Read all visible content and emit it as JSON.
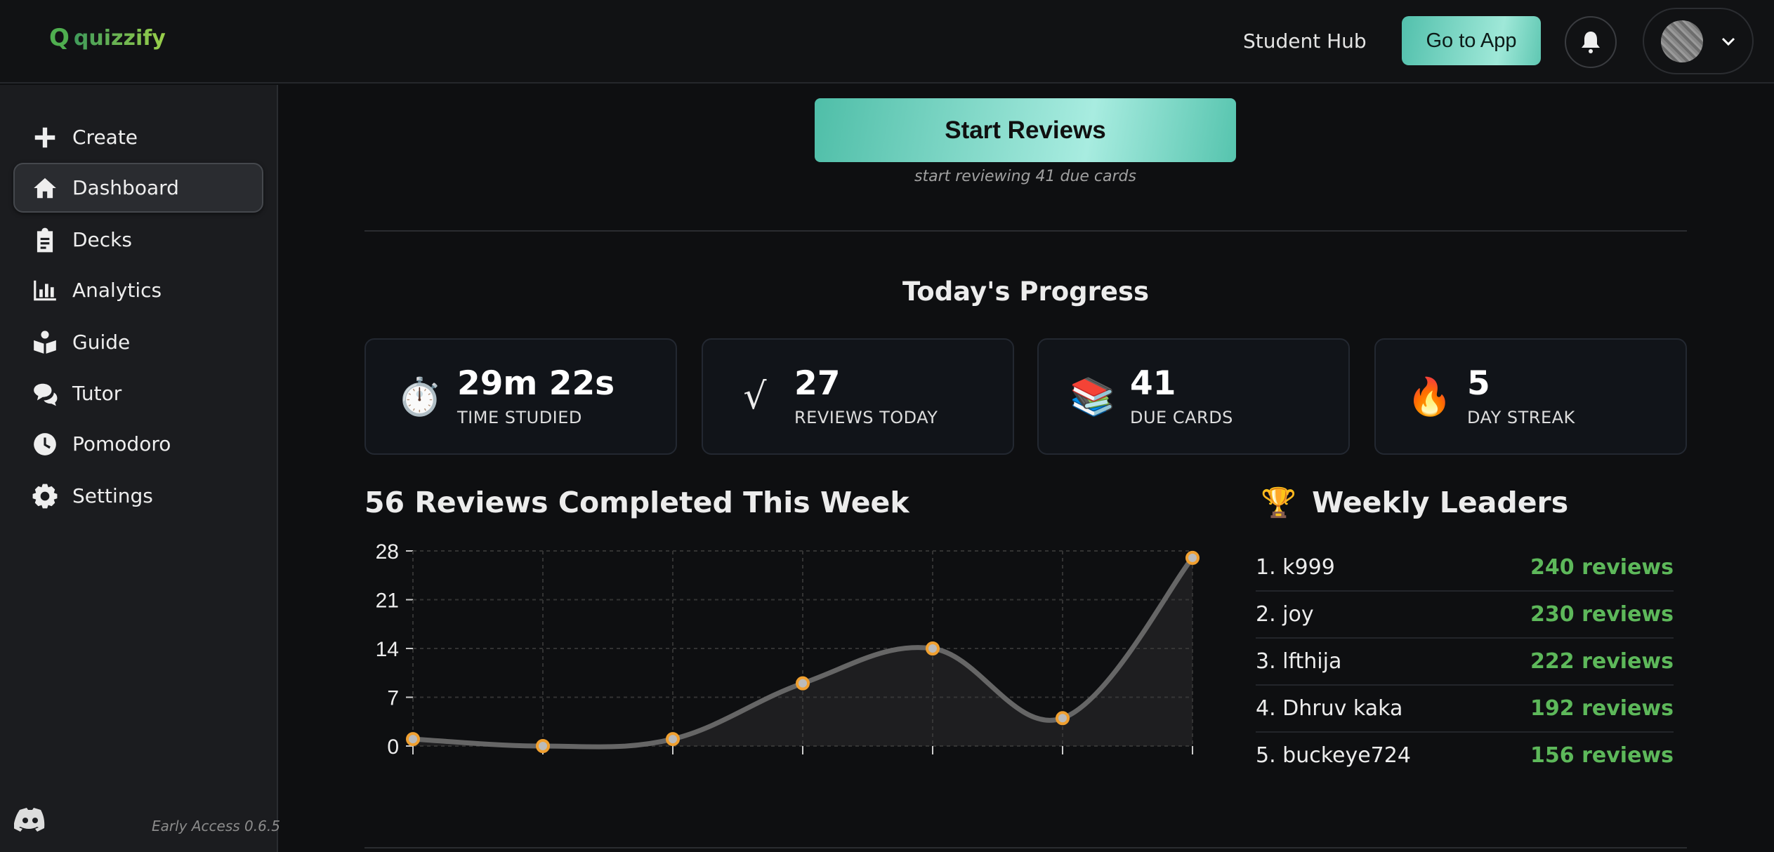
{
  "header": {
    "logo_mark": "Q",
    "logo_text": "quizzify",
    "student_hub": "Student Hub",
    "go_to_app": "Go to App"
  },
  "sidebar": {
    "items": [
      {
        "label": "Create",
        "icon": "plus-icon"
      },
      {
        "label": "Dashboard",
        "icon": "home-icon",
        "active": true
      },
      {
        "label": "Decks",
        "icon": "clipboard-icon"
      },
      {
        "label": "Analytics",
        "icon": "bar-chart-icon"
      },
      {
        "label": "Guide",
        "icon": "book-reader-icon"
      },
      {
        "label": "Tutor",
        "icon": "chat-bubbles-icon"
      },
      {
        "label": "Pomodoro",
        "icon": "clock-icon"
      },
      {
        "label": "Settings",
        "icon": "gear-icon"
      }
    ],
    "version": "Early Access 0.6.5"
  },
  "main": {
    "start_button": "Start Reviews",
    "start_sub": "start reviewing 41 due cards",
    "progress_title": "Today's Progress",
    "stats": [
      {
        "icon": "⏱️",
        "value": "29m 22s",
        "label": "TIME STUDIED"
      },
      {
        "icon": "√",
        "value": "27",
        "label": "REVIEWS TODAY"
      },
      {
        "icon": "📚",
        "value": "41",
        "label": "DUE CARDS"
      },
      {
        "icon": "🔥",
        "value": "5",
        "label": "DAY STREAK"
      }
    ],
    "chart_title": "56 Reviews Completed This Week",
    "leaders_icon": "🏆",
    "leaders_title": "Weekly Leaders",
    "leaders": [
      {
        "name": "1. k999",
        "reviews": "240 reviews"
      },
      {
        "name": "2. joy",
        "reviews": "230 reviews"
      },
      {
        "name": "3. lfthija",
        "reviews": "222 reviews"
      },
      {
        "name": "4. Dhruv kaka",
        "reviews": "192 reviews"
      },
      {
        "name": "5. buckeye724",
        "reviews": "156 reviews"
      }
    ]
  },
  "colors": {
    "accent": "#5cc4b0",
    "leader_green": "#5db85a",
    "point": "#f0a030"
  },
  "chart_data": {
    "type": "area",
    "values": [
      1,
      0,
      1,
      9,
      14,
      4,
      27
    ],
    "ylim": [
      0,
      28
    ],
    "yticks": [
      "0",
      "7",
      "14",
      "21",
      "28"
    ],
    "grid": true,
    "xlabel": "",
    "ylabel": ""
  }
}
